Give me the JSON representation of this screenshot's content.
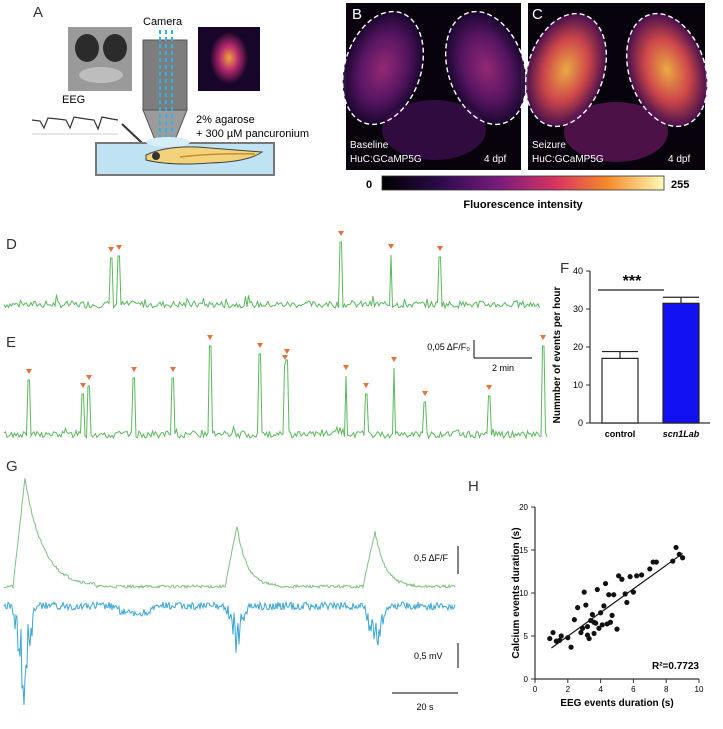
{
  "panels": {
    "A": "A",
    "B": "B",
    "C": "C",
    "D": "D",
    "E": "E",
    "F": "F",
    "G": "G",
    "H": "H"
  },
  "panel_a": {
    "camera": "Camera",
    "eeg": "EEG",
    "agarose_line1": "2% agarose",
    "agarose_line2": "+ 300 µM pancuronium"
  },
  "panel_b": {
    "condition": "Baseline",
    "line": "HuC:GCaMP5G",
    "age": "4 dpf"
  },
  "panel_c": {
    "condition": "Seizure",
    "line": "HuC:GCaMP5G",
    "age": "4 dpf"
  },
  "colorbar": {
    "min": "0",
    "max": "255",
    "label": "Fluorescence intensity"
  },
  "trace_scale": {
    "amp": "0,05 ΔF/F₀",
    "time": "2 min"
  },
  "panel_g": {
    "calcium_scale": "0,5 ΔF/F",
    "eeg_scale": "0,5 mV",
    "time_scale": "20 s"
  },
  "colors": {
    "calcium": "#5cb85c",
    "eeg": "#3aa6d6",
    "marker": "#e8703a",
    "scn1lab": "#1010f0"
  },
  "chart_data": [
    {
      "type": "bar",
      "panel": "F",
      "categories": [
        "control",
        "scn1Lab"
      ],
      "values": [
        17,
        31.5
      ],
      "errors": [
        1.8,
        1.6
      ],
      "ylabel": "Nummber of events per hour",
      "ylim": [
        0,
        40
      ],
      "yticks": [
        "0",
        "10",
        "20",
        "30",
        "40"
      ],
      "significance": "***"
    },
    {
      "type": "scatter",
      "panel": "H",
      "xlabel": "EEG events duration (s)",
      "ylabel": "Calcium events duration (s)",
      "xlim": [
        0,
        10
      ],
      "ylim": [
        0,
        20
      ],
      "xticks": [
        "0",
        "2",
        "4",
        "6",
        "8",
        "10"
      ],
      "yticks": [
        "0",
        "5",
        "10",
        "15",
        "20"
      ],
      "annotation": "R²=0.7723",
      "fit": {
        "x": [
          1,
          9
        ],
        "y": [
          3.6,
          14.6
        ]
      },
      "points": [
        [
          0.9,
          4.7
        ],
        [
          1.1,
          5.4
        ],
        [
          1.3,
          4.4
        ],
        [
          1.5,
          4.5
        ],
        [
          1.6,
          5.0
        ],
        [
          2.0,
          4.8
        ],
        [
          2.2,
          3.7
        ],
        [
          2.4,
          6.9
        ],
        [
          2.6,
          8.3
        ],
        [
          2.8,
          5.4
        ],
        [
          3.0,
          10.1
        ],
        [
          3.1,
          8.6
        ],
        [
          3.2,
          5.1
        ],
        [
          3.3,
          4.7
        ],
        [
          3.4,
          6.8
        ],
        [
          3.5,
          7.5
        ],
        [
          3.6,
          6.6
        ],
        [
          3.7,
          6.5
        ],
        [
          3.8,
          10.4
        ],
        [
          3.9,
          5.9
        ],
        [
          4.0,
          7.7
        ],
        [
          4.1,
          6.3
        ],
        [
          4.2,
          8.5
        ],
        [
          4.3,
          11.1
        ],
        [
          4.4,
          6.4
        ],
        [
          4.5,
          9.8
        ],
        [
          4.6,
          6.6
        ],
        [
          4.8,
          9.8
        ],
        [
          5.0,
          5.8
        ],
        [
          5.1,
          12.0
        ],
        [
          5.3,
          11.6
        ],
        [
          5.5,
          9.9
        ],
        [
          5.8,
          11.9
        ],
        [
          6.0,
          10.1
        ],
        [
          6.2,
          12.0
        ],
        [
          6.5,
          12.1
        ],
        [
          7.0,
          12.8
        ],
        [
          7.2,
          13.6
        ],
        [
          7.4,
          13.6
        ],
        [
          8.4,
          13.7
        ],
        [
          8.6,
          15.3
        ],
        [
          8.8,
          14.5
        ],
        [
          9.0,
          14.1
        ],
        [
          3.2,
          6.1
        ],
        [
          4.7,
          7.4
        ],
        [
          2.9,
          5.9
        ],
        [
          3.6,
          5.3
        ],
        [
          5.6,
          8.9
        ]
      ]
    }
  ]
}
